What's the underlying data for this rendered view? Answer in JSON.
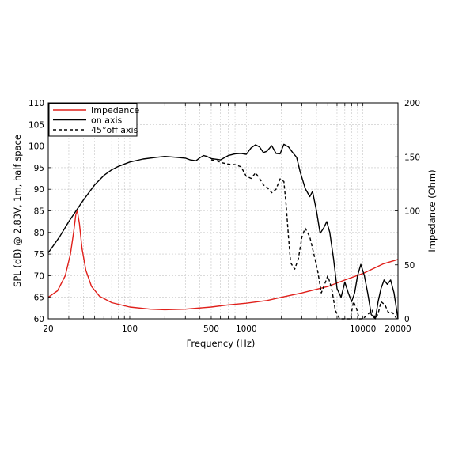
{
  "chart_data": {
    "type": "line",
    "xscale": "log",
    "xlabel": "Frequency (Hz)",
    "ylabel_left": "SPL (dB) @ 2.83V, 1m, half space",
    "ylabel_right": "Impedance (Ohm)",
    "xlim": [
      20,
      20000
    ],
    "ylim_left": [
      60,
      110
    ],
    "ylim_right": [
      0,
      200
    ],
    "grid": true,
    "legend_placement": "top-left",
    "x_ticks": [
      {
        "value": 20,
        "label": "20"
      },
      {
        "value": 100,
        "label": "100"
      },
      {
        "value": 500,
        "label": "500"
      },
      {
        "value": 1000,
        "label": "1000"
      },
      {
        "value": 10000,
        "label": "10000"
      },
      {
        "value": 20000,
        "label": "20000"
      }
    ],
    "y_ticks_left": [
      "60",
      "65",
      "70",
      "75",
      "80",
      "85",
      "90",
      "95",
      "100",
      "105",
      "110"
    ],
    "y_ticks_right": [
      "0",
      "50",
      "100",
      "150",
      "200"
    ],
    "series": [
      {
        "name": "Impedance",
        "axis": "right",
        "color": "#e0201b",
        "dash": "solid",
        "points": [
          [
            20,
            20
          ],
          [
            24,
            26
          ],
          [
            28,
            40
          ],
          [
            31,
            60
          ],
          [
            33,
            80
          ],
          [
            34.5,
            97
          ],
          [
            35.5,
            100
          ],
          [
            37,
            88
          ],
          [
            39,
            65
          ],
          [
            42,
            45
          ],
          [
            47,
            30
          ],
          [
            55,
            21
          ],
          [
            70,
            15
          ],
          [
            100,
            11
          ],
          [
            150,
            9
          ],
          [
            200,
            8.5
          ],
          [
            300,
            9
          ],
          [
            500,
            11
          ],
          [
            700,
            13
          ],
          [
            1000,
            14.5
          ],
          [
            1500,
            17
          ],
          [
            2000,
            20
          ],
          [
            3000,
            24
          ],
          [
            5000,
            30
          ],
          [
            7000,
            36
          ],
          [
            10000,
            42
          ],
          [
            15000,
            51
          ],
          [
            20000,
            55
          ]
        ]
      },
      {
        "name": "on axis",
        "axis": "left",
        "color": "#000000",
        "dash": "solid",
        "points": [
          [
            20,
            75.3
          ],
          [
            25,
            79
          ],
          [
            30,
            82.5
          ],
          [
            40,
            87.5
          ],
          [
            50,
            91
          ],
          [
            60,
            93.2
          ],
          [
            70,
            94.5
          ],
          [
            80,
            95.3
          ],
          [
            100,
            96.3
          ],
          [
            130,
            97
          ],
          [
            170,
            97.4
          ],
          [
            200,
            97.6
          ],
          [
            250,
            97.4
          ],
          [
            300,
            97.2
          ],
          [
            330,
            96.8
          ],
          [
            370,
            96.6
          ],
          [
            400,
            97.3
          ],
          [
            430,
            97.8
          ],
          [
            460,
            97.6
          ],
          [
            500,
            97.1
          ],
          [
            600,
            96.8
          ],
          [
            700,
            97.8
          ],
          [
            800,
            98.2
          ],
          [
            900,
            98.3
          ],
          [
            1000,
            98.1
          ],
          [
            1100,
            99.6
          ],
          [
            1200,
            100.3
          ],
          [
            1300,
            99.8
          ],
          [
            1400,
            98.5
          ],
          [
            1500,
            98.8
          ],
          [
            1650,
            100.1
          ],
          [
            1800,
            98.3
          ],
          [
            1950,
            98.2
          ],
          [
            2100,
            100.4
          ],
          [
            2300,
            99.8
          ],
          [
            2500,
            98.5
          ],
          [
            2700,
            97.4
          ],
          [
            2900,
            94
          ],
          [
            3200,
            90.2
          ],
          [
            3500,
            88.3
          ],
          [
            3700,
            89.5
          ],
          [
            4000,
            85
          ],
          [
            4300,
            79.8
          ],
          [
            4600,
            81
          ],
          [
            4900,
            82.5
          ],
          [
            5200,
            80
          ],
          [
            5600,
            74
          ],
          [
            6000,
            67
          ],
          [
            6500,
            65
          ],
          [
            7000,
            68.5
          ],
          [
            7500,
            66
          ],
          [
            8000,
            64
          ],
          [
            8500,
            66
          ],
          [
            9000,
            70
          ],
          [
            9600,
            72.6
          ],
          [
            10300,
            70
          ],
          [
            11000,
            66
          ],
          [
            11800,
            61
          ],
          [
            12800,
            60
          ],
          [
            13500,
            64
          ],
          [
            14300,
            67
          ],
          [
            15200,
            69
          ],
          [
            16200,
            68
          ],
          [
            17300,
            69
          ],
          [
            18500,
            66
          ],
          [
            20000,
            60
          ]
        ]
      },
      {
        "name": "45°off axis",
        "axis": "left",
        "color": "#000000",
        "dash": "dashed",
        "points": [
          [
            500,
            96.8
          ],
          [
            560,
            96.6
          ],
          [
            600,
            96.2
          ],
          [
            700,
            95.8
          ],
          [
            800,
            95.7
          ],
          [
            900,
            95.2
          ],
          [
            1000,
            93
          ],
          [
            1100,
            92.5
          ],
          [
            1200,
            93.8
          ],
          [
            1300,
            92.5
          ],
          [
            1400,
            91
          ],
          [
            1500,
            90.5
          ],
          [
            1650,
            89.2
          ],
          [
            1800,
            90
          ],
          [
            1950,
            92.4
          ],
          [
            2100,
            91.8
          ],
          [
            2200,
            86
          ],
          [
            2300,
            79
          ],
          [
            2400,
            73
          ],
          [
            2600,
            71.5
          ],
          [
            2800,
            74
          ],
          [
            3000,
            79
          ],
          [
            3200,
            81
          ],
          [
            3500,
            79
          ],
          [
            3800,
            75
          ],
          [
            4100,
            71
          ],
          [
            4400,
            66
          ],
          [
            4700,
            68
          ],
          [
            5000,
            70
          ],
          [
            5400,
            67
          ],
          [
            5800,
            62
          ],
          [
            6300,
            60
          ],
          [
            7000,
            60
          ],
          [
            7800,
            60
          ],
          [
            8300,
            64
          ],
          [
            8800,
            62.5
          ],
          [
            9300,
            60
          ],
          [
            10000,
            60
          ],
          [
            11000,
            61
          ],
          [
            12000,
            62
          ],
          [
            12800,
            60
          ],
          [
            13500,
            61.2
          ],
          [
            14300,
            64
          ],
          [
            15500,
            63.2
          ],
          [
            16500,
            61.5
          ],
          [
            17500,
            61.7
          ],
          [
            18500,
            61
          ],
          [
            19500,
            60
          ],
          [
            20000,
            60
          ]
        ]
      }
    ]
  }
}
